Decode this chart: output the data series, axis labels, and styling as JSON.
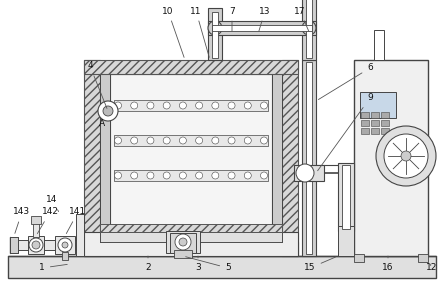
{
  "bg_color": "#ffffff",
  "lc": "#444444",
  "hc": "#888888",
  "figsize": [
    4.44,
    2.86
  ],
  "dpi": 100,
  "fs": 6.5
}
